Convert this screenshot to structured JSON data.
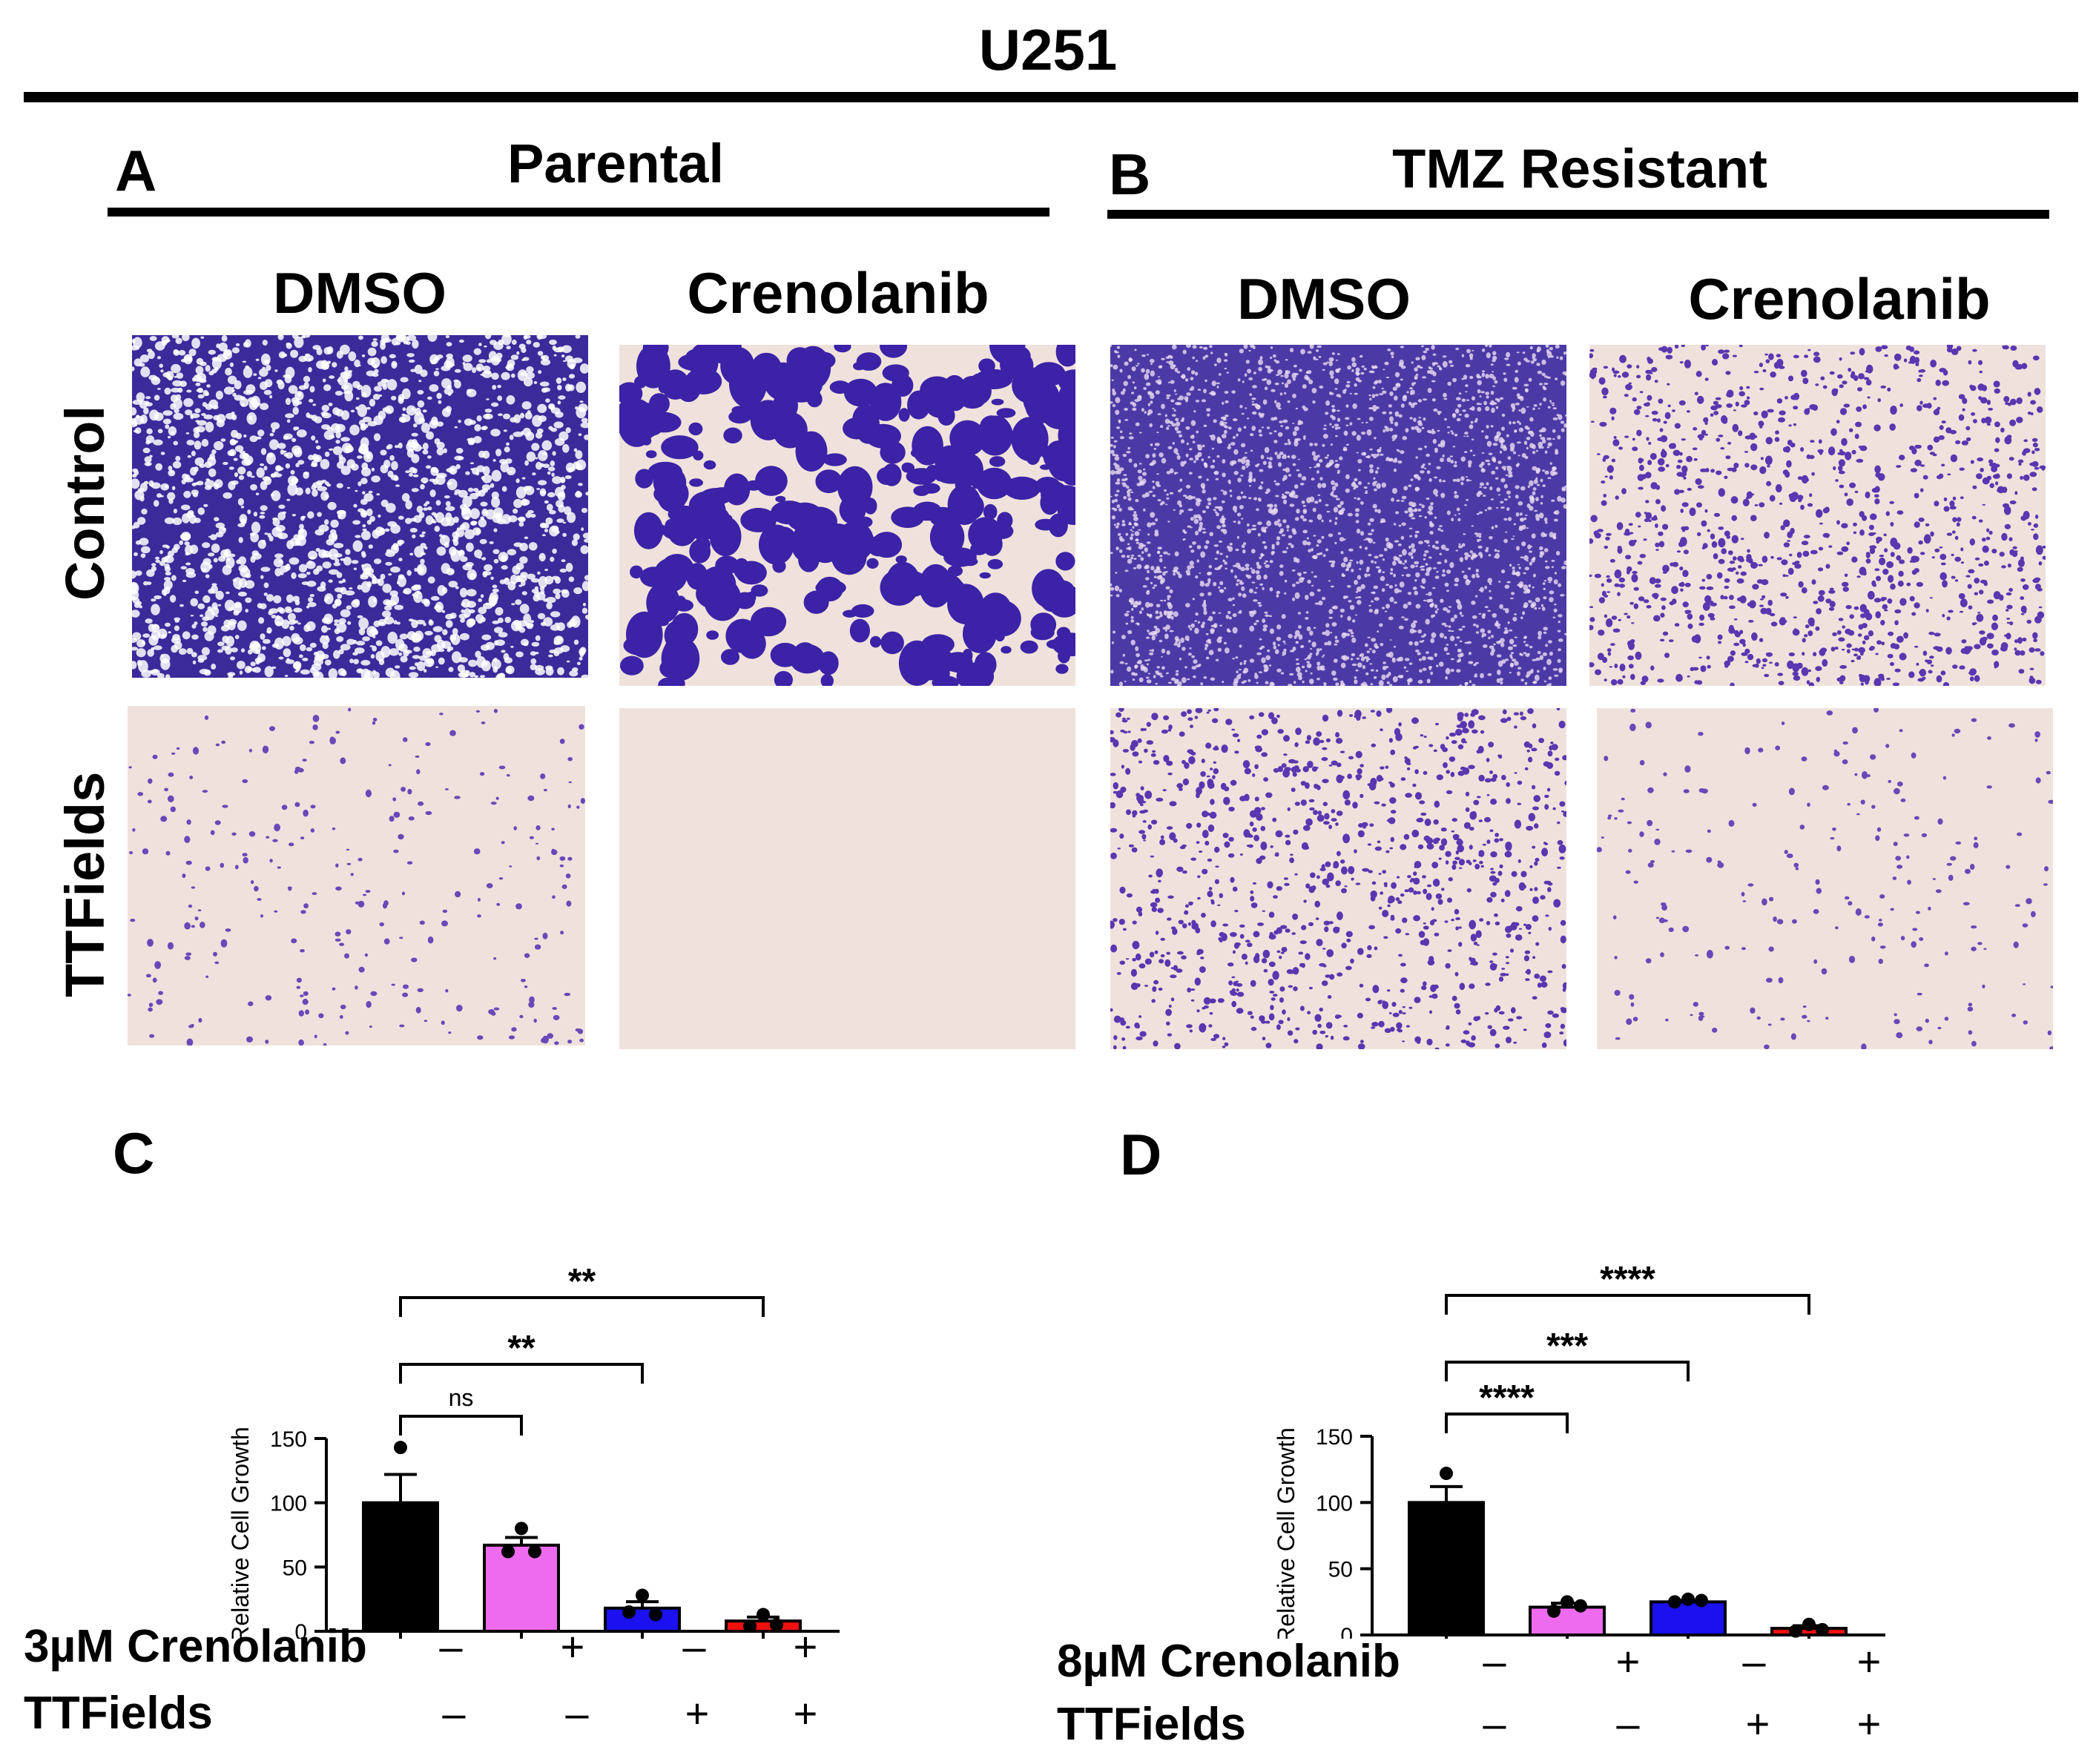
{
  "figure": {
    "title": "U251",
    "panel_a": {
      "letter": "A",
      "title": "Parental"
    },
    "panel_b": {
      "letter": "B",
      "title": "TMZ Resistant"
    },
    "column_headers": [
      "DMSO",
      "Crenolanib",
      "DMSO",
      "Crenolanib"
    ],
    "row_labels": [
      "Control",
      "TTFields"
    ],
    "micrographs": [
      {
        "id": "a-control-dmso",
        "density": 0.95,
        "style": "confluent"
      },
      {
        "id": "a-control-crenolanib",
        "density": 0.55,
        "style": "clusters"
      },
      {
        "id": "a-ttfields-dmso",
        "density": 0.12,
        "style": "sparse"
      },
      {
        "id": "a-ttfields-crenolanib",
        "density": 0.0,
        "style": "empty"
      },
      {
        "id": "b-control-dmso",
        "density": 0.85,
        "style": "confluent-fine"
      },
      {
        "id": "b-control-crenolanib",
        "density": 0.45,
        "style": "dots"
      },
      {
        "id": "b-ttfields-dmso",
        "density": 0.4,
        "style": "dots"
      },
      {
        "id": "b-ttfields-crenolanib",
        "density": 0.1,
        "style": "sparse"
      }
    ],
    "colors": {
      "stain": "#4a2aa0",
      "background": "#efe2dc",
      "dmso": "#000000",
      "crenolanib": "#ee6bef",
      "ttfields": "#1a10f0",
      "combo": "#f01010"
    }
  },
  "chart_data": [
    {
      "panel": "C",
      "type": "bar",
      "ylabel": "Relative Cell Growth",
      "ylim": [
        0,
        150
      ],
      "yticks": [
        "0",
        "50",
        "100",
        "150"
      ],
      "bars": [
        {
          "value": 100,
          "error": 22,
          "points": [
            143,
            78,
            80
          ],
          "color": "#000000"
        },
        {
          "value": 67,
          "error": 6,
          "points": [
            80,
            62,
            62
          ],
          "color": "#ee6bef"
        },
        {
          "value": 18,
          "error": 5,
          "points": [
            28,
            15,
            13
          ],
          "color": "#1a10f0"
        },
        {
          "value": 8,
          "error": 3,
          "points": [
            13,
            4,
            5
          ],
          "color": "#f01010"
        }
      ],
      "comparisons": [
        {
          "from": 0,
          "to": 1,
          "label": "ns"
        },
        {
          "from": 0,
          "to": 2,
          "label": "**"
        },
        {
          "from": 0,
          "to": 3,
          "label": "**"
        }
      ],
      "treatments": [
        {
          "label": "3µM Crenolanib",
          "signs": [
            "–",
            "+",
            "–",
            "+"
          ]
        },
        {
          "label": "TTFields",
          "signs": [
            "–",
            "–",
            "+",
            "+"
          ]
        }
      ]
    },
    {
      "panel": "D",
      "type": "bar",
      "ylabel": "Relative Cell Growth",
      "ylim": [
        0,
        150
      ],
      "yticks": [
        "0",
        "50",
        "100",
        "150"
      ],
      "bars": [
        {
          "value": 100,
          "error": 12,
          "points": [
            122,
            90,
            88
          ],
          "color": "#000000"
        },
        {
          "value": 21,
          "error": 3,
          "points": [
            25,
            18,
            22
          ],
          "color": "#ee6bef"
        },
        {
          "value": 25,
          "error": 1,
          "points": [
            27,
            25,
            26
          ],
          "color": "#1a10f0"
        },
        {
          "value": 5,
          "error": 2,
          "points": [
            8,
            3,
            4
          ],
          "color": "#f01010"
        }
      ],
      "comparisons": [
        {
          "from": 0,
          "to": 1,
          "label": "****"
        },
        {
          "from": 0,
          "to": 2,
          "label": "***"
        },
        {
          "from": 0,
          "to": 3,
          "label": "****"
        }
      ],
      "treatments": [
        {
          "label": "8µM Crenolanib",
          "signs": [
            "–",
            "+",
            "–",
            "+"
          ]
        },
        {
          "label": "TTFields",
          "signs": [
            "–",
            "–",
            "+",
            "+"
          ]
        }
      ]
    }
  ]
}
